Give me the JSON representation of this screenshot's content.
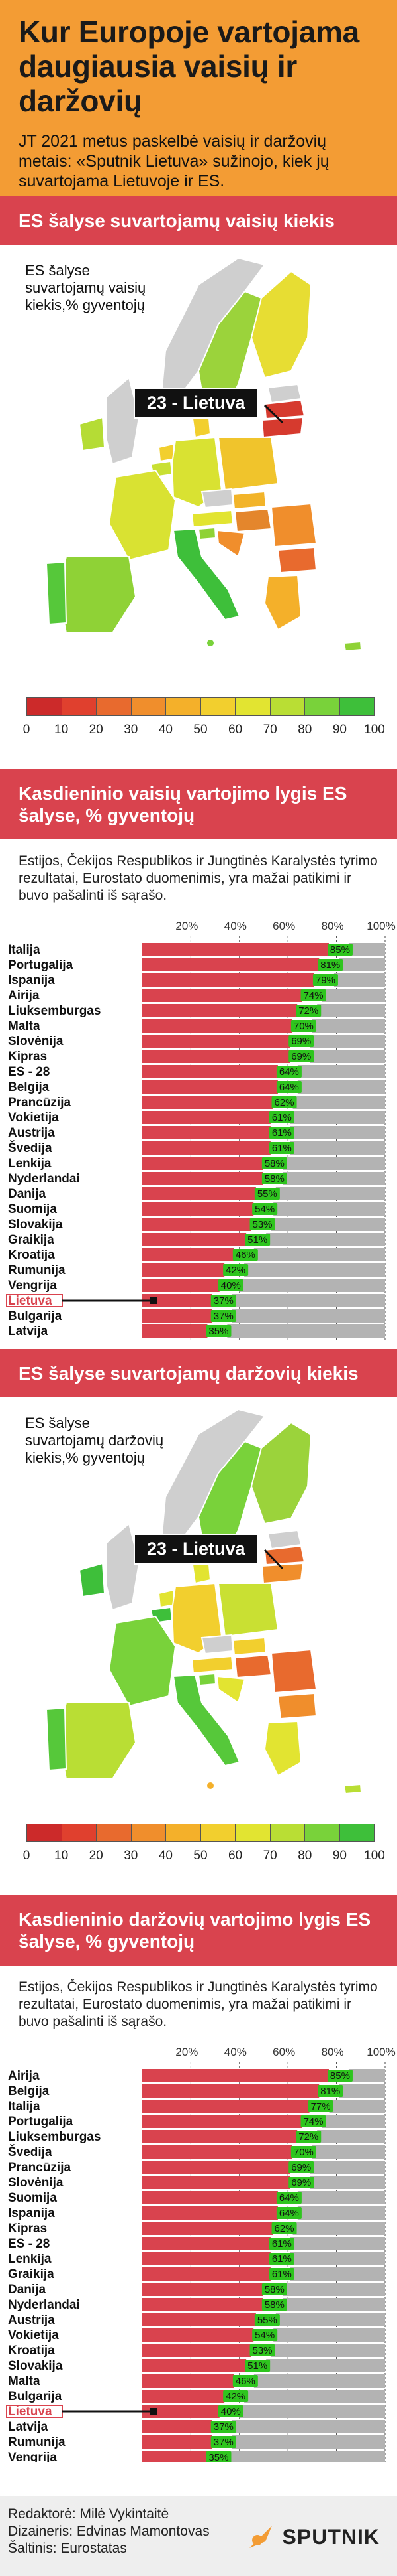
{
  "header": {
    "title": "Kur Europoje vartojama daugiausia vaisių ir daržovių",
    "intro": "JT 2021 metus paskelbė vaisių ir daržovių metais: «Sputnik Lietuva» sužinojo, kiek jų suvartojama Lietuvoje ir ES."
  },
  "colors": {
    "header_bg": "#f39c34",
    "banner_bg": "#d9434e",
    "bar_red": "#d9434e",
    "bar_gray": "#b3b3b3",
    "bar_green": "#2ec51e",
    "sea": "#ffffff",
    "land_other": "#cfcfcf"
  },
  "section1": {
    "banner": "ES šalyse suvartojamų vaisių kiekis",
    "map_label": "ES šalyse suvartojamų vaisių kiekis,% gyventojų",
    "callout": "23 - Lietuva"
  },
  "section2": {
    "banner": "Kasdieninio vaisių vartojimo lygis ES šalyse, % gyventojų",
    "note": "Estijos, Čekijos Respublikos ir Jungtinės Karalystės tyrimo rezultatai, Eurostato duomenimis, yra mažai patikimi ir buvo pašalinti iš sąrašo."
  },
  "section3": {
    "banner": "ES šalyse suvartojamų daržovių kiekis",
    "map_label": "ES šalyse suvartojamų daržovių kiekis,% gyventojų",
    "callout": "23 - Lietuva"
  },
  "section4": {
    "banner": "Kasdieninio daržovių vartojimo lygis ES šalyse, % gyventojų",
    "note": "Estijos, Čekijos Respublikos ir Jungtinės Karalystės tyrimo rezultatai, Eurostato duomenimis, yra mažai patikimi ir buvo pašalinti iš sąrašo."
  },
  "legend": {
    "colors": [
      "#cc2a2a",
      "#e0402e",
      "#e86a2e",
      "#f08e2c",
      "#f4b02a",
      "#f2cf2e",
      "#e2e431",
      "#b9de34",
      "#79d23a",
      "#3ebf3a"
    ],
    "ticks": [
      "0",
      "10",
      "20",
      "30",
      "40",
      "50",
      "60",
      "70",
      "80",
      "90",
      "100"
    ]
  },
  "footer": {
    "credits": [
      "Redaktorė: Milė Vykintaitė",
      "Dizaineris: Edvinas Mamontovas",
      "Šaltinis: Eurostatas"
    ],
    "brand": "SPUTNIK"
  },
  "chart_data": [
    {
      "type": "bar",
      "title": "Kasdieninio vaisių vartojimo lygis ES šalyse, % gyventojų",
      "orientation": "horizontal",
      "xlim": [
        0,
        100
      ],
      "ticks": [
        "20%",
        "40%",
        "60%",
        "80%",
        "100%"
      ],
      "highlight": "Lietuva",
      "categories": [
        "Italija",
        "Portugalija",
        "Ispanija",
        "Airija",
        "Liuksemburgas",
        "Malta",
        "Slovėnija",
        "Kipras",
        "ES - 28",
        "Belgija",
        "Prancūzija",
        "Vokietija",
        "Austrija",
        "Švedija",
        "Lenkija",
        "Nyderlandai",
        "Danija",
        "Suomija",
        "Slovakija",
        "Graikija",
        "Kroatija",
        "Rumunija",
        "Vengrija",
        "Lietuva",
        "Bulgarija",
        "Latvija"
      ],
      "values": [
        85,
        81,
        79,
        74,
        72,
        70,
        69,
        69,
        64,
        64,
        62,
        61,
        61,
        61,
        58,
        58,
        55,
        54,
        53,
        51,
        46,
        42,
        40,
        37,
        37,
        35
      ],
      "labels": [
        "85%",
        "81%",
        "79%",
        "74%",
        "72%",
        "70%",
        "69%",
        "69%",
        "64%",
        "64%",
        "62%",
        "61%",
        "61%",
        "61%",
        "58%",
        "58%",
        "55%",
        "54%",
        "53%",
        "51%",
        "46%",
        "42%",
        "40%",
        "37%",
        "37%",
        "35%"
      ]
    },
    {
      "type": "bar",
      "title": "Kasdieninio daržovių vartojimo lygis ES šalyse, % gyventojų",
      "orientation": "horizontal",
      "xlim": [
        0,
        100
      ],
      "ticks": [
        "20%",
        "40%",
        "60%",
        "80%",
        "100%"
      ],
      "highlight": "Lietuva",
      "categories": [
        "Airija",
        "Belgija",
        "Italija",
        "Portugalija",
        "Liuksemburgas",
        "Švedija",
        "Prancūzija",
        "Slovėnija",
        "Suomija",
        "Ispanija",
        "Kipras",
        "ES - 28",
        "Lenkija",
        "Graikija",
        "Danija",
        "Nyderlandai",
        "Austrija",
        "Vokietija",
        "Kroatija",
        "Slovakija",
        "Malta",
        "Bulgarija",
        "Lietuva",
        "Latvija",
        "Rumunija",
        "Vengrija"
      ],
      "values": [
        85,
        81,
        77,
        74,
        72,
        70,
        69,
        69,
        64,
        64,
        62,
        61,
        61,
        61,
        58,
        58,
        55,
        54,
        53,
        51,
        46,
        42,
        40,
        37,
        37,
        35
      ],
      "labels": [
        "85%",
        "81%",
        "77%",
        "74%",
        "72%",
        "70%",
        "69%",
        "69%",
        "64%",
        "64%",
        "62%",
        "61%",
        "61%",
        "61%",
        "58%",
        "58%",
        "55%",
        "54%",
        "53%",
        "51%",
        "46%",
        "42%",
        "40%",
        "37%",
        "37%",
        "35%"
      ]
    }
  ]
}
